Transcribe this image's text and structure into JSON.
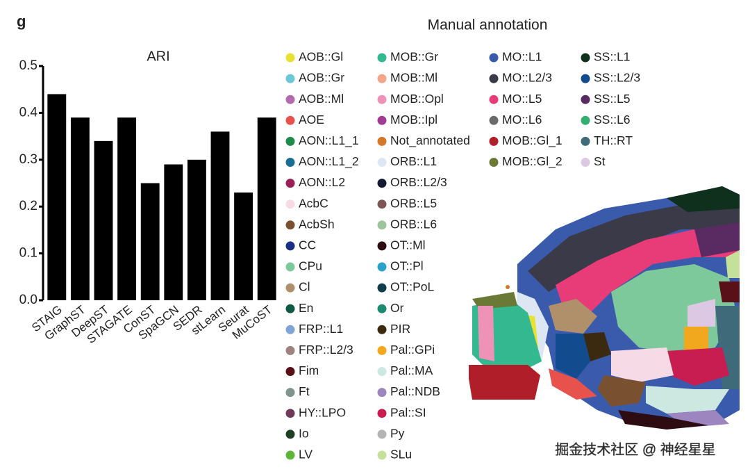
{
  "panel_label": "g",
  "chart_data": {
    "type": "bar",
    "title": "ARI",
    "categories": [
      "STAIG",
      "GraphST",
      "DeepST",
      "STAGATE",
      "ConST",
      "SpaGCN",
      "SEDR",
      "stLearn",
      "Seurat",
      "MuCoST"
    ],
    "values": [
      0.44,
      0.39,
      0.34,
      0.39,
      0.25,
      0.29,
      0.3,
      0.36,
      0.23,
      0.39
    ],
    "color": "#000000",
    "ylim": [
      0,
      0.5
    ],
    "yticks": [
      {
        "value": 0,
        "label": "0.0"
      },
      {
        "value": 0.1,
        "label": "0.1"
      },
      {
        "value": 0.2,
        "label": "0.2"
      },
      {
        "value": 0.3,
        "label": "0.3"
      },
      {
        "value": 0.4,
        "label": "0.4"
      },
      {
        "value": 0.5,
        "label": "0.5"
      }
    ],
    "grid": false
  },
  "annotation_legend": {
    "title": "Manual annotation",
    "columns": [
      [
        {
          "label": "AOB::Gl",
          "color": "#e8e032"
        },
        {
          "label": "AOB::Gr",
          "color": "#6cc7d6"
        },
        {
          "label": "AOB::Ml",
          "color": "#b46aae"
        },
        {
          "label": "AOE",
          "color": "#e8524d"
        },
        {
          "label": "AON::L1_1",
          "color": "#1e8a4c"
        },
        {
          "label": "AON::L1_2",
          "color": "#1a6e96"
        },
        {
          "label": "AON::L2",
          "color": "#9a1f55"
        },
        {
          "label": "AcbC",
          "color": "#f6dbe6"
        },
        {
          "label": "AcbSh",
          "color": "#7a5130"
        },
        {
          "label": "CC",
          "color": "#1d2f84"
        },
        {
          "label": "CPu",
          "color": "#7ec99b"
        },
        {
          "label": "Cl",
          "color": "#b0906a"
        },
        {
          "label": "En",
          "color": "#0f5a45"
        },
        {
          "label": "FRP::L1",
          "color": "#7fa3d6"
        },
        {
          "label": "FRP::L2/3",
          "color": "#9e8282"
        },
        {
          "label": "Fim",
          "color": "#5a1018"
        },
        {
          "label": "Ft",
          "color": "#7f948c"
        },
        {
          "label": "HY::LPO",
          "color": "#6e3a58"
        },
        {
          "label": "Io",
          "color": "#1f3f24"
        },
        {
          "label": "LV",
          "color": "#5fb43a"
        }
      ],
      [
        {
          "label": "MOB::Gr",
          "color": "#33b890"
        },
        {
          "label": "MOB::Ml",
          "color": "#f2a68a"
        },
        {
          "label": "MOB::Opl",
          "color": "#ee92b8"
        },
        {
          "label": "MOB::Ipl",
          "color": "#a03c96"
        },
        {
          "label": "Not_annotated",
          "color": "#d4782a"
        },
        {
          "label": "ORB::L1",
          "color": "#dde7f3"
        },
        {
          "label": "ORB::L2/3",
          "color": "#141a30"
        },
        {
          "label": "ORB::L5",
          "color": "#7e5656"
        },
        {
          "label": "ORB::L6",
          "color": "#9dc49a"
        },
        {
          "label": "OT::Ml",
          "color": "#2e0d12"
        },
        {
          "label": "OT::Pl",
          "color": "#2aa0cc"
        },
        {
          "label": "OT::PoL",
          "color": "#123e4c"
        },
        {
          "label": "Or",
          "color": "#1d8a70"
        },
        {
          "label": "PIR",
          "color": "#3b2a10"
        },
        {
          "label": "Pal::GPi",
          "color": "#f2a81e"
        },
        {
          "label": "Pal::MA",
          "color": "#cde8e0"
        },
        {
          "label": "Pal::NDB",
          "color": "#9d86c0"
        },
        {
          "label": "Pal::SI",
          "color": "#c81d50"
        },
        {
          "label": "Py",
          "color": "#b4b4b4"
        },
        {
          "label": "SLu",
          "color": "#c4e09a"
        }
      ],
      [
        {
          "label": "MO::L1",
          "color": "#3a5bac"
        },
        {
          "label": "MO::L2/3",
          "color": "#3a3a48"
        },
        {
          "label": "MO::L5",
          "color": "#e83c78"
        },
        {
          "label": "MO::L6",
          "color": "#6a6a6a"
        },
        {
          "label": "MOB::Gl_1",
          "color": "#b01e2a"
        },
        {
          "label": "MOB::Gl_2",
          "color": "#6a7a36"
        }
      ],
      [
        {
          "label": "SS::L1",
          "color": "#10301e"
        },
        {
          "label": "SS::L2/3",
          "color": "#124c8e"
        },
        {
          "label": "SS::L5",
          "color": "#5a2a62"
        },
        {
          "label": "SS::L6",
          "color": "#33b070"
        },
        {
          "label": "TH::RT",
          "color": "#3e6a7a"
        },
        {
          "label": "St",
          "color": "#dcc8e2"
        }
      ]
    ]
  },
  "watermark": "掘金技术社区 @ 神经星星"
}
